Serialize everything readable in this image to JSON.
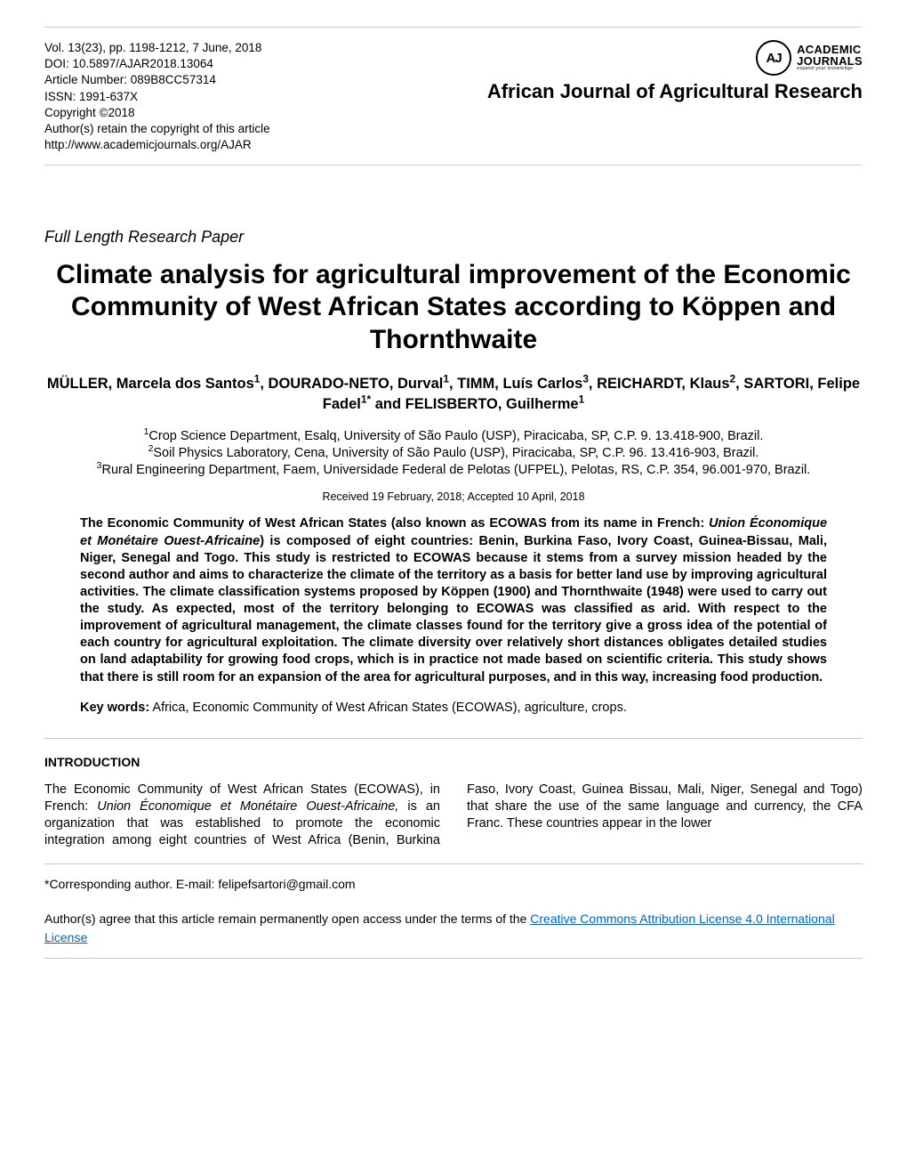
{
  "meta": {
    "vol_line": "Vol. 13(23), pp. 1198-1212, 7 June, 2018",
    "doi_line": "DOI: 10.5897/AJAR2018.13064",
    "article_num": "Article  Number: 089B8CC57314",
    "issn": "ISSN: 1991-637X",
    "copyright": "Copyright ©2018",
    "retain": "Author(s) retain the copyright of this article",
    "url": "http://www.academicjournals.org/AJAR"
  },
  "logo": {
    "circle": "AJ",
    "line1": "ACADEMIC",
    "line2": "JOURNALS",
    "line3": "expand your knowledge"
  },
  "journal": "African Journal of Agricultural Research",
  "paper_type": "Full Length Research Paper",
  "title": "Climate analysis for agricultural improvement of the Economic Community of West African States according to Köppen and Thornthwaite",
  "authors_html": "MÜLLER, Marcela dos Santos<sup>1</sup>, DOURADO-NETO, Durval<sup>1</sup>, TIMM, Luís Carlos<sup>3</sup>, REICHARDT, Klaus<sup>2</sup>, SARTORI, Felipe Fadel<sup>1*</sup> and FELISBERTO, Guilherme<sup>1</sup>",
  "affiliations_html": "<sup>1</sup>Crop Science Department, Esalq, University of São Paulo (USP), Piracicaba, SP, C.P. 9. 13.418-900, Brazil.<br><sup>2</sup>Soil Physics Laboratory, Cena, University of São Paulo (USP), Piracicaba, SP, C.P. 96. 13.416-903, Brazil.<br><sup>3</sup>Rural Engineering Department, Faem, Universidade Federal de Pelotas (UFPEL), Pelotas, RS, C.P. 354, 96.001-970, Brazil.",
  "dates": "Received 19 February, 2018; Accepted 10 April, 2018",
  "abstract_html": "The Economic Community of West African States (also known as ECOWAS from its name in French: <span class=\"ital\">Union Économique et Monétaire Ouest-Africaine</span>) is composed of eight countries: Benin, Burkina Faso, Ivory Coast, Guinea-Bissau, Mali, Niger, Senegal and Togo. This study is restricted to ECOWAS because it stems from a survey mission headed by the second author and aims to characterize the climate of the territory as a basis for better land use by improving agricultural activities. The climate classification systems proposed by Köppen (1900) and Thornthwaite (1948) were used to carry out the study. As expected, most of the territory belonging to ECOWAS was classified as arid. With respect to the improvement of agricultural management, the climate classes found for the territory give a gross idea of the potential of each country for agricultural exploitation. The climate diversity over relatively short distances obligates detailed studies on land adaptability for growing food crops, which is in practice not made based on scientific criteria. This study shows that there is still room for an expansion of the area for agricultural purposes, and in this way, increasing food production.",
  "keywords_label": "Key words:",
  "keywords_text": " Africa, Economic Community of West African States (ECOWAS), agriculture, crops.",
  "section_intro": "INTRODUCTION",
  "intro_html": "The Economic Community of West African States (ECOWAS), in French: <span class=\"ital\">Union Économique et Monétaire Ouest-Africaine,</span> is an organization that was established to  promote   the   economic   integration   among   eight countries of West Africa (Benin, Burkina Faso, Ivory Coast, Guinea Bissau, Mali, Niger, Senegal and Togo) that share the use of the same language and currency, the CFA Franc. These countries  appear  in   the  lower",
  "corr_author": "*Corresponding author. E-mail: felipefsartori@gmail.com",
  "license_pre": "Author(s) agree that this article remain permanently open access under the terms of the ",
  "license_link": "Creative Commons Attribution License 4.0 International License",
  "colors": {
    "text": "#000000",
    "border": "#c8c8c8",
    "link": "#0066cc",
    "background": "#ffffff"
  }
}
